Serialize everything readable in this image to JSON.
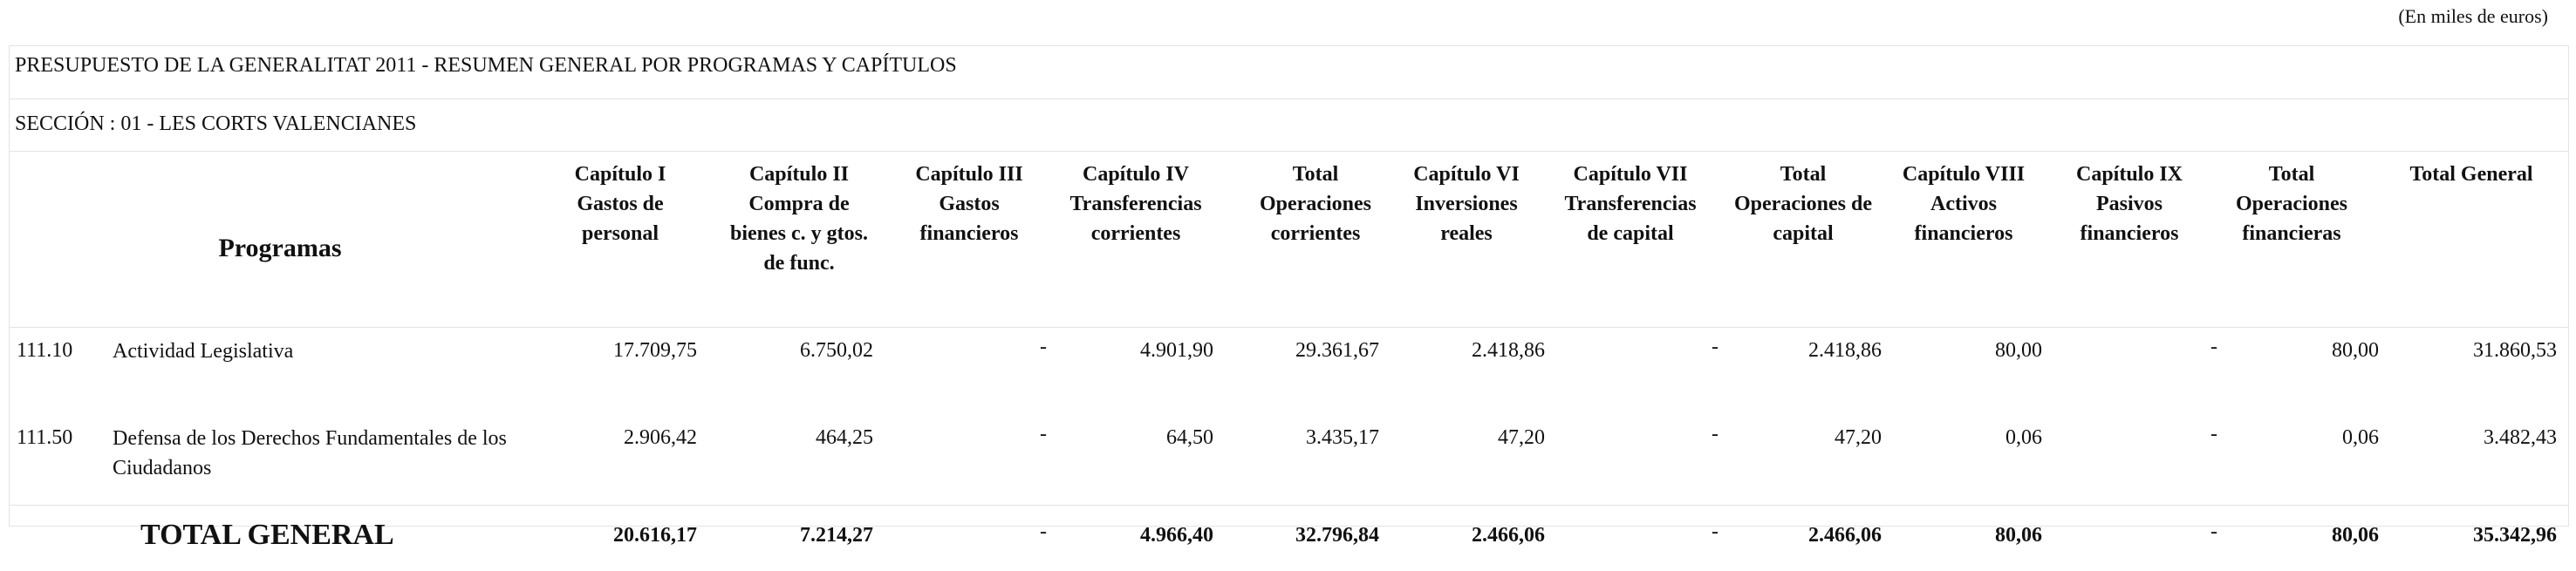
{
  "units_note": "(En miles de euros)",
  "title": "PRESUPUESTO DE LA GENERALITAT 2011 - RESUMEN GENERAL POR PROGRAMAS Y CAPÍTULOS",
  "section": "SECCIÓN : 01  -  LES CORTS VALENCIANES",
  "headers": {
    "programas": "Programas",
    "columns": [
      "Capítulo I\nGastos de\npersonal",
      "Capítulo II\nCompra de\nbienes c. y gtos.\nde func.",
      "Capítulo III\nGastos\nfinancieros",
      "Capítulo IV\nTransferencias\ncorrientes",
      "Total\nOperaciones\ncorrientes",
      "Capítulo VI\nInversiones\nreales",
      "Capítulo VII\nTransferencias\nde capital",
      "Total\nOperaciones de\ncapital",
      "Capítulo VIII\nActivos\nfinancieros",
      "Capítulo IX\nPasivos\nfinancieros",
      "Total\nOperaciones\nfinancieras",
      "Total General"
    ]
  },
  "rows": [
    {
      "code": "111.10",
      "name": "Actividad Legislativa",
      "values": [
        "17.709,75",
        "6.750,02",
        "-",
        "4.901,90",
        "29.361,67",
        "2.418,86",
        "-",
        "2.418,86",
        "80,00",
        "-",
        "80,00",
        "31.860,53"
      ]
    },
    {
      "code": "111.50",
      "name": "Defensa de los Derechos Fundamentales de los Ciudadanos",
      "values": [
        "2.906,42",
        "464,25",
        "-",
        "64,50",
        "3.435,17",
        "47,20",
        "-",
        "47,20",
        "0,06",
        "-",
        "0,06",
        "3.482,43"
      ]
    }
  ],
  "total": {
    "label": "TOTAL GENERAL",
    "values": [
      "20.616,17",
      "7.214,27",
      "-",
      "4.966,40",
      "32.796,84",
      "2.466,06",
      "-",
      "2.466,06",
      "80,06",
      "-",
      "80,06",
      "35.342,96"
    ]
  }
}
